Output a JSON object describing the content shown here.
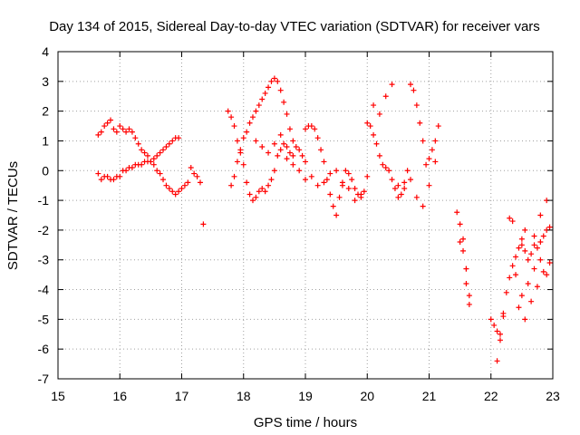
{
  "chart_data": {
    "type": "scatter",
    "title": "Day 134 of 2015, Sidereal Day-to-day VTEC variation (SDTVAR) for receiver vars",
    "xlabel": "GPS time / hours",
    "ylabel": "SDTVAR / TECUs",
    "xlim": [
      15,
      23
    ],
    "ylim": [
      -7,
      4
    ],
    "xticks": [
      "15",
      "16",
      "17",
      "18",
      "19",
      "20",
      "21",
      "22",
      "23"
    ],
    "yticks": [
      "-7",
      "-6",
      "-5",
      "-4",
      "-3",
      "-2",
      "-1",
      "0",
      "1",
      "2",
      "3",
      "4"
    ],
    "grid": true,
    "marker": "+",
    "series": [
      {
        "name": "vars",
        "color": "#ff0000",
        "x": [
          15.65,
          15.7,
          15.75,
          15.8,
          15.85,
          15.9,
          15.95,
          16.0,
          16.05,
          16.1,
          16.15,
          16.2,
          16.25,
          16.3,
          16.35,
          16.4,
          16.45,
          16.5,
          16.55,
          16.6,
          16.65,
          16.7,
          16.75,
          16.8,
          16.85,
          16.9,
          16.95,
          17.0,
          17.05,
          17.1,
          15.65,
          15.7,
          15.75,
          15.8,
          15.85,
          15.9,
          15.95,
          16.0,
          16.05,
          16.1,
          16.15,
          16.2,
          16.25,
          16.3,
          16.35,
          16.4,
          16.45,
          16.5,
          16.55,
          16.6,
          16.65,
          16.7,
          16.75,
          16.8,
          16.85,
          16.9,
          16.95,
          17.15,
          17.2,
          17.25,
          17.3,
          17.35,
          17.75,
          17.8,
          17.85,
          17.9,
          17.95,
          18.0,
          18.05,
          18.1,
          18.15,
          18.2,
          18.25,
          18.3,
          18.35,
          18.4,
          18.45,
          18.5,
          18.55,
          18.6,
          18.65,
          18.7,
          18.75,
          18.8,
          17.8,
          17.85,
          17.9,
          17.95,
          18.0,
          18.05,
          18.1,
          18.15,
          18.2,
          18.25,
          18.3,
          18.35,
          18.4,
          18.45,
          18.5,
          18.55,
          18.6,
          18.65,
          18.7,
          18.75,
          18.8,
          18.85,
          18.9,
          18.95,
          18.2,
          18.3,
          18.4,
          18.5,
          18.6,
          18.7,
          18.8,
          18.9,
          19.0,
          19.0,
          19.05,
          19.1,
          19.15,
          19.2,
          19.25,
          19.3,
          19.35,
          19.4,
          19.45,
          19.5,
          19.55,
          19.6,
          19.65,
          19.7,
          19.75,
          19.8,
          19.85,
          19.9,
          19.95,
          19.0,
          19.1,
          19.2,
          19.3,
          19.4,
          19.5,
          19.6,
          19.7,
          19.8,
          19.9,
          20.0,
          20.05,
          20.1,
          20.15,
          20.2,
          20.25,
          20.3,
          20.35,
          20.4,
          20.45,
          20.5,
          20.55,
          20.6,
          20.65,
          20.7,
          20.75,
          20.8,
          20.85,
          20.9,
          20.95,
          21.0,
          21.05,
          21.1,
          21.15,
          20.0,
          20.1,
          20.2,
          20.3,
          20.4,
          20.5,
          20.6,
          20.7,
          20.8,
          20.9,
          21.0,
          21.1,
          21.45,
          21.5,
          21.55,
          21.55,
          21.6,
          21.6,
          21.65,
          21.65,
          21.5,
          21.6,
          22.0,
          22.05,
          22.1,
          22.15,
          22.2,
          22.25,
          22.3,
          22.35,
          22.4,
          22.45,
          22.5,
          22.55,
          22.6,
          22.65,
          22.7,
          22.75,
          22.8,
          22.85,
          22.9,
          22.95,
          22.3,
          22.4,
          22.5,
          22.6,
          22.7,
          22.8,
          22.9,
          22.35,
          22.45,
          22.55,
          22.65,
          22.75,
          22.85,
          22.95,
          22.1,
          22.15,
          22.2,
          22.5,
          22.55,
          22.7,
          22.8,
          22.9
        ],
        "y": [
          1.2,
          1.3,
          1.5,
          1.6,
          1.7,
          1.4,
          1.3,
          1.5,
          1.4,
          1.3,
          1.4,
          1.3,
          1.1,
          0.9,
          0.7,
          0.6,
          0.5,
          0.3,
          0.2,
          0.0,
          -0.1,
          -0.3,
          -0.5,
          -0.6,
          -0.7,
          -0.8,
          -0.7,
          -0.6,
          -0.5,
          -0.4,
          -0.1,
          -0.3,
          -0.2,
          -0.2,
          -0.3,
          -0.3,
          -0.2,
          -0.2,
          0.0,
          0.0,
          0.1,
          0.1,
          0.2,
          0.2,
          0.2,
          0.3,
          0.3,
          0.3,
          0.4,
          0.5,
          0.6,
          0.7,
          0.8,
          0.9,
          1.0,
          1.1,
          1.1,
          0.1,
          -0.1,
          -0.2,
          -0.4,
          -1.8,
          2.0,
          1.8,
          1.5,
          1.0,
          0.6,
          0.2,
          -0.4,
          -0.8,
          -1.0,
          -0.9,
          -0.7,
          -0.6,
          -0.7,
          -0.5,
          -0.3,
          0.0,
          0.5,
          0.7,
          0.9,
          0.8,
          0.6,
          0.5,
          -0.5,
          -0.2,
          0.3,
          0.7,
          1.1,
          1.3,
          1.6,
          1.8,
          2.0,
          2.2,
          2.4,
          2.6,
          2.8,
          3.0,
          3.1,
          3.0,
          2.7,
          2.3,
          1.9,
          1.4,
          1.0,
          0.8,
          0.7,
          0.5,
          1.0,
          0.8,
          0.6,
          0.9,
          1.2,
          0.4,
          0.2,
          0.0,
          0.3,
          1.4,
          1.5,
          1.5,
          1.4,
          1.1,
          0.7,
          0.3,
          -0.3,
          -0.8,
          -1.2,
          -1.5,
          -0.9,
          -0.4,
          0.0,
          -0.1,
          -0.3,
          -0.6,
          -0.8,
          -0.9,
          -0.7,
          -0.3,
          -0.2,
          -0.5,
          -0.4,
          -0.1,
          0.0,
          -0.5,
          -0.6,
          -1.0,
          -0.8,
          1.6,
          1.5,
          1.2,
          0.9,
          0.5,
          0.2,
          0.1,
          0.0,
          -0.3,
          -0.6,
          -0.9,
          -0.8,
          -0.4,
          0.0,
          2.9,
          2.7,
          2.2,
          1.6,
          1.0,
          0.2,
          0.4,
          0.7,
          1.0,
          1.5,
          -0.2,
          2.2,
          1.9,
          2.5,
          2.9,
          -0.5,
          -0.6,
          -0.3,
          -0.9,
          -1.2,
          -0.5,
          0.3,
          -1.4,
          -1.8,
          -2.3,
          -2.7,
          -3.3,
          -3.8,
          -4.2,
          -4.5,
          -2.4,
          -3.3,
          -5.0,
          -5.2,
          -5.4,
          -5.7,
          -4.8,
          -4.1,
          -3.6,
          -3.2,
          -2.9,
          -2.6,
          -2.3,
          -2.7,
          -3.0,
          -2.8,
          -2.5,
          -2.6,
          -2.4,
          -2.2,
          -2.0,
          -1.9,
          -1.6,
          -3.5,
          -4.2,
          -3.8,
          -3.3,
          -3.0,
          -3.5,
          -1.7,
          -4.6,
          -5.0,
          -4.4,
          -3.9,
          -3.4,
          -3.1,
          -6.4,
          -5.5,
          -4.9,
          -2.5,
          -2.0,
          -2.2,
          -1.5,
          -1.0
        ]
      }
    ]
  }
}
